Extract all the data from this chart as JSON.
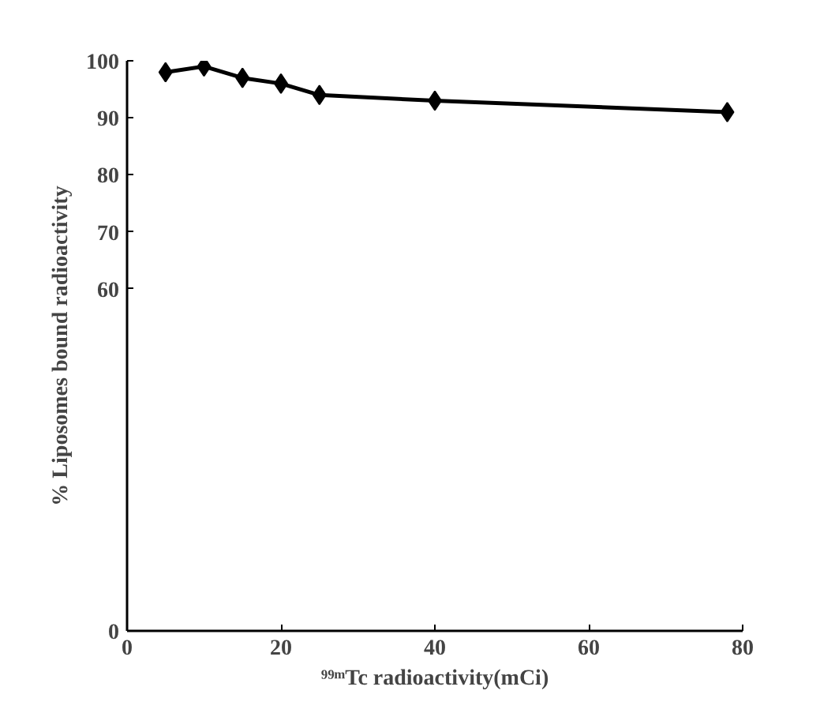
{
  "chart_data": {
    "type": "line",
    "ylabel": "% Liposomes bound radioactivity",
    "xlabel": "⁹⁹ᵐTc radioactivity(mCi)",
    "x": [
      5,
      10,
      15,
      20,
      25,
      40,
      78
    ],
    "series": [
      {
        "color": "#000000",
        "values": [
          98,
          99,
          97,
          96,
          94,
          93,
          91
        ]
      }
    ],
    "xlim": [
      0,
      80
    ],
    "xticks": [
      0,
      20,
      40,
      60,
      80
    ],
    "ylim": [
      0,
      100
    ],
    "yticks": [
      0,
      60,
      70,
      80,
      90,
      100
    ],
    "marker": "diamond",
    "line_style": "solid"
  }
}
